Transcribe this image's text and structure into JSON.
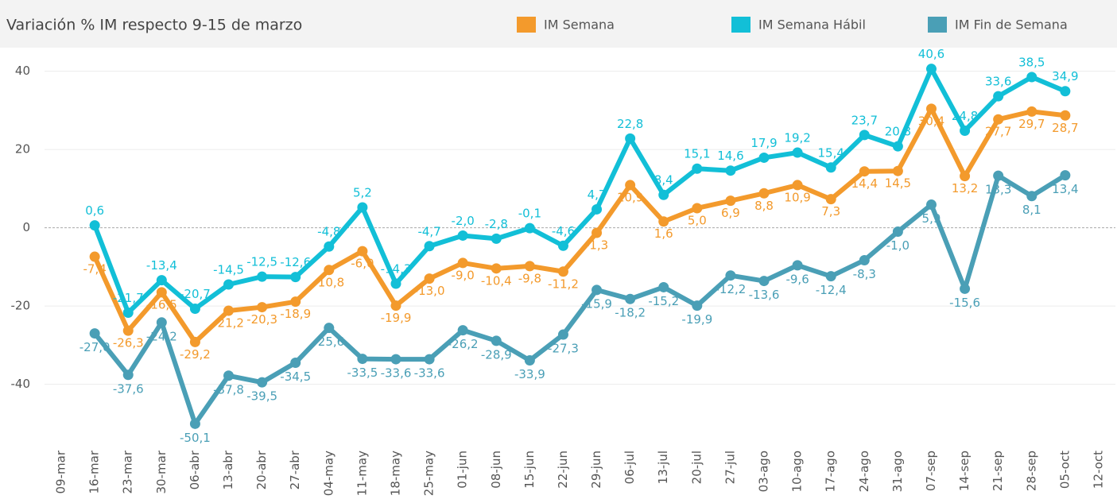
{
  "chart_data": {
    "type": "line",
    "title": "Variación % IM respecto 9-15 de marzo",
    "categories": [
      "09-mar",
      "16-mar",
      "23-mar",
      "30-mar",
      "06-abr",
      "13-abr",
      "20-abr",
      "27-abr",
      "04-may",
      "11-may",
      "18-may",
      "25-may",
      "01-jun",
      "08-jun",
      "15-jun",
      "22-jun",
      "29-jun",
      "06-jul",
      "13-jul",
      "20-jul",
      "27-jul",
      "03-ago",
      "10-ago",
      "17-ago",
      "24-ago",
      "31-ago",
      "07-sep",
      "14-sep",
      "21-sep",
      "28-sep",
      "05-oct",
      "12-oct"
    ],
    "ylim": [
      -54.5,
      45
    ],
    "yticks": [
      -40,
      -20,
      0,
      20,
      40
    ],
    "grid": true,
    "series": [
      {
        "name": "IM Semana",
        "color": "#f39a2c",
        "values": [
          null,
          -7.4,
          -26.3,
          -16.5,
          -29.2,
          -21.2,
          -20.3,
          -18.9,
          -10.8,
          -6.0,
          -19.9,
          -13.0,
          -9.0,
          -10.4,
          -9.8,
          -11.2,
          -1.3,
          10.9,
          1.6,
          5.0,
          6.9,
          8.8,
          10.9,
          7.3,
          14.4,
          14.5,
          30.4,
          13.2,
          27.7,
          29.7,
          28.7,
          null
        ],
        "value_labels": [
          null,
          "-7,4",
          "-26,3",
          "-16,5",
          "-29,2",
          "-21,2",
          "-20,3",
          "-18,9",
          "-10,8",
          "-6,0",
          "-19,9",
          "-13,0",
          "-9,0",
          "-10,4",
          "-9,8",
          "-11,2",
          "-1,3",
          "10,9",
          "1,6",
          "5,0",
          "6,9",
          "8,8",
          "10,9",
          "7,3",
          "14,4",
          "14,5",
          "30,4",
          "13,2",
          "27,7",
          "29,7",
          "28,7",
          null
        ]
      },
      {
        "name": "IM Semana Hábil",
        "color": "#12bfd7",
        "values": [
          null,
          0.6,
          -21.7,
          -13.4,
          -20.7,
          -14.5,
          -12.5,
          -12.6,
          -4.8,
          5.2,
          -14.3,
          -4.7,
          -2.0,
          -2.8,
          -0.1,
          -4.6,
          4.7,
          22.8,
          8.4,
          15.1,
          14.6,
          17.9,
          19.2,
          15.4,
          23.7,
          20.8,
          40.6,
          24.8,
          33.6,
          38.5,
          34.9,
          null
        ],
        "value_labels": [
          null,
          "0,6",
          "-21,7",
          "-13,4",
          "-20,7",
          "-14,5",
          "-12,5",
          "-12,6",
          "-4,8",
          "5,2",
          "-14,3",
          "-4,7",
          "-2,0",
          "-2,8",
          "-0,1",
          "-4,6",
          "4,7",
          "22,8",
          "8,4",
          "15,1",
          "14,6",
          "17,9",
          "19,2",
          "15,4",
          "23,7",
          "20,8",
          "40,6",
          "24,8",
          "33,6",
          "38,5",
          "34,9",
          null
        ]
      },
      {
        "name": "IM Fin de Semana",
        "color": "#4a9fb6",
        "values": [
          null,
          -27.0,
          -37.6,
          -24.2,
          -50.1,
          -37.8,
          -39.5,
          -34.5,
          -25.6,
          -33.5,
          -33.6,
          -33.6,
          -26.2,
          -28.9,
          -33.9,
          -27.3,
          -15.9,
          -18.2,
          -15.2,
          -19.9,
          -12.2,
          -13.6,
          -9.6,
          -12.4,
          -8.3,
          -1.0,
          5.9,
          -15.6,
          13.3,
          8.1,
          13.4,
          null
        ],
        "value_labels": [
          null,
          "-27,0",
          "-37,6",
          "-24,2",
          "-50,1",
          "-37,8",
          "-39,5",
          "-34,5",
          "-25,6",
          "-33,5",
          "-33,6",
          "-33,6",
          "-26,2",
          "-28,9",
          "-33,9",
          "-27,3",
          "-15,9",
          "-18,2",
          "-15,2",
          "-19,9",
          "-12,2",
          "-13,6",
          "-9,6",
          "-12,4",
          "-8,3",
          "-1,0",
          "5,9",
          "-15,6",
          "13,3",
          "8,1",
          "13,4",
          null
        ]
      }
    ]
  }
}
